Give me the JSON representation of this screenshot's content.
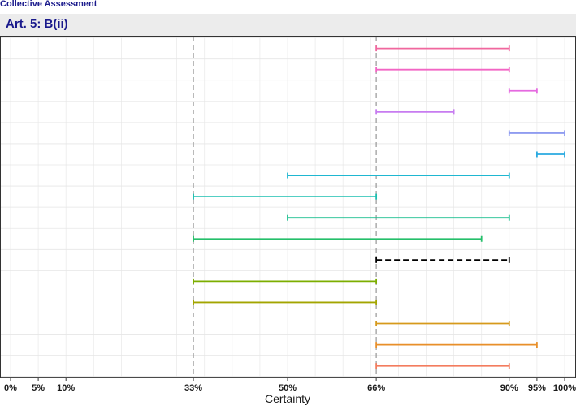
{
  "header": {
    "supertitle": "Collective Assessment",
    "panel_title": "Art. 5: B(ii)"
  },
  "chart_data": {
    "type": "interval",
    "xlabel": "Certainty",
    "xlim": [
      0,
      100
    ],
    "x_ticks": [
      0,
      5,
      10,
      33,
      50,
      66,
      90,
      95,
      100
    ],
    "x_tick_labels": [
      "0%",
      "5%",
      "10%",
      "33%",
      "50%",
      "66%",
      "90%",
      "95%",
      "100%"
    ],
    "reference_lines": [
      33,
      66
    ],
    "grid": true,
    "legend": "none",
    "series": [
      {
        "low": 66,
        "high": 90,
        "color": "#f0679e",
        "dashed": false
      },
      {
        "low": 66,
        "high": 90,
        "color": "#f265c4",
        "dashed": false
      },
      {
        "low": 90,
        "high": 95,
        "color": "#e56ae0",
        "dashed": false
      },
      {
        "low": 66,
        "high": 80,
        "color": "#c77cf0",
        "dashed": false
      },
      {
        "low": 90,
        "high": 100,
        "color": "#8f9cf0",
        "dashed": false
      },
      {
        "low": 95,
        "high": 100,
        "color": "#2aaae0",
        "dashed": false
      },
      {
        "low": 50,
        "high": 90,
        "color": "#1fb7d1",
        "dashed": false
      },
      {
        "low": 33,
        "high": 66,
        "color": "#1cbfb0",
        "dashed": false
      },
      {
        "low": 50,
        "high": 90,
        "color": "#1cbf8f",
        "dashed": false
      },
      {
        "low": 33,
        "high": 85,
        "color": "#25bf6a",
        "dashed": false
      },
      {
        "low": 66,
        "high": 90,
        "color": "#000000",
        "dashed": true
      },
      {
        "low": 33,
        "high": 66,
        "color": "#7cae00",
        "dashed": false
      },
      {
        "low": 33,
        "high": 66,
        "color": "#a3a500",
        "dashed": false
      },
      {
        "low": 66,
        "high": 90,
        "color": "#d69a1c",
        "dashed": false
      },
      {
        "low": 66,
        "high": 95,
        "color": "#e88f2a",
        "dashed": false
      },
      {
        "low": 66,
        "high": 90,
        "color": "#f37c5e",
        "dashed": false
      }
    ]
  }
}
